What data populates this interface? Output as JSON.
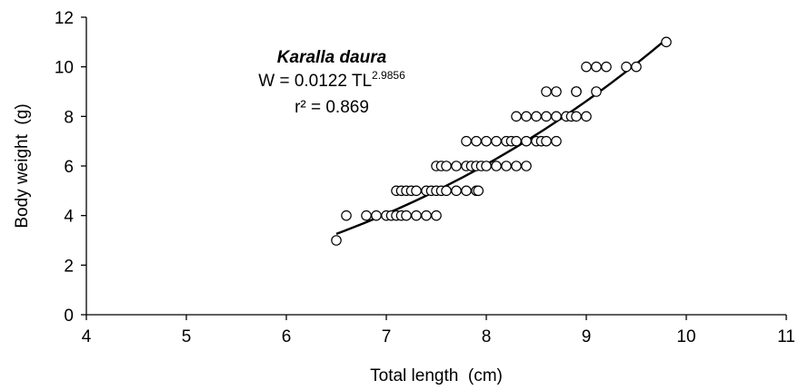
{
  "chart_data": {
    "type": "scatter",
    "title": "",
    "xlabel": "Total length  (cm)",
    "ylabel": "Body weight  (g)",
    "xlim": [
      4,
      11
    ],
    "ylim": [
      0,
      12
    ],
    "xticks": [
      4,
      5,
      6,
      7,
      8,
      9,
      10,
      11
    ],
    "yticks": [
      0,
      2,
      4,
      6,
      8,
      10,
      12
    ],
    "grid": false,
    "legend": "none",
    "annotation": {
      "species": "Karalla daura",
      "equation_base": "W = 0.0122 TL",
      "equation_exponent": "2.9856",
      "r2": "r² = 0.869"
    },
    "fit": {
      "type": "power",
      "a": 0.0122,
      "b": 2.9856,
      "x_range": [
        6.5,
        9.8
      ]
    },
    "series": [
      {
        "marker": "open-circle",
        "points": [
          [
            6.5,
            3
          ],
          [
            6.6,
            4
          ],
          [
            6.8,
            4
          ],
          [
            6.9,
            4
          ],
          [
            7.0,
            4
          ],
          [
            7.05,
            4
          ],
          [
            7.1,
            4
          ],
          [
            7.15,
            4
          ],
          [
            7.2,
            4
          ],
          [
            7.3,
            4
          ],
          [
            7.4,
            4
          ],
          [
            7.5,
            4
          ],
          [
            7.1,
            5
          ],
          [
            7.15,
            5
          ],
          [
            7.2,
            5
          ],
          [
            7.25,
            5
          ],
          [
            7.3,
            5
          ],
          [
            7.4,
            5
          ],
          [
            7.45,
            5
          ],
          [
            7.5,
            5
          ],
          [
            7.55,
            5
          ],
          [
            7.6,
            5
          ],
          [
            7.7,
            5
          ],
          [
            7.8,
            5
          ],
          [
            7.9,
            5
          ],
          [
            7.92,
            5
          ],
          [
            7.5,
            6
          ],
          [
            7.55,
            6
          ],
          [
            7.6,
            6
          ],
          [
            7.7,
            6
          ],
          [
            7.8,
            6
          ],
          [
            7.85,
            6
          ],
          [
            7.9,
            6
          ],
          [
            7.95,
            6
          ],
          [
            8.0,
            6
          ],
          [
            8.1,
            6
          ],
          [
            8.2,
            6
          ],
          [
            8.3,
            6
          ],
          [
            8.4,
            6
          ],
          [
            7.8,
            7
          ],
          [
            7.9,
            7
          ],
          [
            8.0,
            7
          ],
          [
            8.1,
            7
          ],
          [
            8.2,
            7
          ],
          [
            8.25,
            7
          ],
          [
            8.3,
            7
          ],
          [
            8.4,
            7
          ],
          [
            8.5,
            7
          ],
          [
            8.55,
            7
          ],
          [
            8.6,
            7
          ],
          [
            8.7,
            7
          ],
          [
            8.3,
            8
          ],
          [
            8.4,
            8
          ],
          [
            8.5,
            8
          ],
          [
            8.6,
            8
          ],
          [
            8.7,
            8
          ],
          [
            8.8,
            8
          ],
          [
            8.85,
            8
          ],
          [
            8.9,
            8
          ],
          [
            9.0,
            8
          ],
          [
            8.6,
            9
          ],
          [
            8.7,
            9
          ],
          [
            8.9,
            9
          ],
          [
            8.9,
            9
          ],
          [
            9.1,
            9
          ],
          [
            9.0,
            10
          ],
          [
            9.1,
            10
          ],
          [
            9.2,
            10
          ],
          [
            9.4,
            10
          ],
          [
            9.5,
            10
          ],
          [
            9.8,
            11
          ]
        ]
      }
    ]
  }
}
